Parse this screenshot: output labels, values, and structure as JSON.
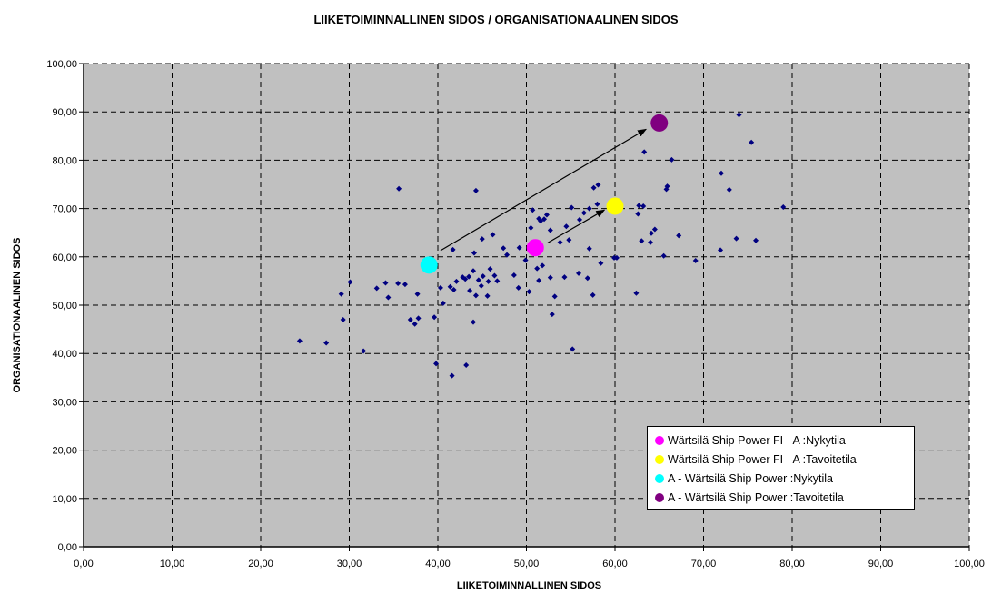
{
  "chart_data": {
    "type": "scatter",
    "title": "LIIKETOIMINNALLINEN SIDOS / ORGANISATIONAALINEN SIDOS",
    "xlabel": "LIIKETOIMINNALLINEN SIDOS",
    "ylabel": "ORGANISATIONAALINEN SIDOS",
    "xlim": [
      0,
      100
    ],
    "ylim": [
      0,
      100
    ],
    "x_ticks": [
      "0,00",
      "10,00",
      "20,00",
      "30,00",
      "40,00",
      "50,00",
      "60,00",
      "70,00",
      "80,00",
      "90,00",
      "100,00"
    ],
    "y_ticks": [
      "0,00",
      "10,00",
      "20,00",
      "30,00",
      "40,00",
      "50,00",
      "60,00",
      "70,00",
      "80,00",
      "90,00",
      "100,00"
    ],
    "grid": true,
    "plot_background": "#c0c0c0",
    "legend_position": "bottom-right",
    "base_series": {
      "color": "#000080",
      "points": [
        [
          24.4,
          42.6
        ],
        [
          27.4,
          42.2
        ],
        [
          29.1,
          52.3
        ],
        [
          29.3,
          47.0
        ],
        [
          30.1,
          54.8
        ],
        [
          31.6,
          40.5
        ],
        [
          33.1,
          53.5
        ],
        [
          34.1,
          54.6
        ],
        [
          34.4,
          51.6
        ],
        [
          35.5,
          54.5
        ],
        [
          35.6,
          74.1
        ],
        [
          36.3,
          54.3
        ],
        [
          36.9,
          47.0
        ],
        [
          37.4,
          46.1
        ],
        [
          37.7,
          52.3
        ],
        [
          37.8,
          47.3
        ],
        [
          39.6,
          47.5
        ],
        [
          39.8,
          37.9
        ],
        [
          40.3,
          53.6
        ],
        [
          40.6,
          50.4
        ],
        [
          41.4,
          53.8
        ],
        [
          41.6,
          35.4
        ],
        [
          41.7,
          61.5
        ],
        [
          41.8,
          53.2
        ],
        [
          42.1,
          54.9
        ],
        [
          42.8,
          55.8
        ],
        [
          43.1,
          55.4
        ],
        [
          43.2,
          37.6
        ],
        [
          43.5,
          55.9
        ],
        [
          43.6,
          53.0
        ],
        [
          44.0,
          57.1
        ],
        [
          44.0,
          46.5
        ],
        [
          44.1,
          60.8
        ],
        [
          44.3,
          52.0
        ],
        [
          44.3,
          73.7
        ],
        [
          44.6,
          55.2
        ],
        [
          44.9,
          54.0
        ],
        [
          45.0,
          63.7
        ],
        [
          45.1,
          56.0
        ],
        [
          45.6,
          51.9
        ],
        [
          45.7,
          54.9
        ],
        [
          45.9,
          57.5
        ],
        [
          46.2,
          64.6
        ],
        [
          46.4,
          56.1
        ],
        [
          46.7,
          55.0
        ],
        [
          47.4,
          61.8
        ],
        [
          47.8,
          60.4
        ],
        [
          48.6,
          56.2
        ],
        [
          49.1,
          53.6
        ],
        [
          49.2,
          61.9
        ],
        [
          49.9,
          59.3
        ],
        [
          50.3,
          52.8
        ],
        [
          50.5,
          66.0
        ],
        [
          50.7,
          69.7
        ],
        [
          51.2,
          57.6
        ],
        [
          51.4,
          67.9
        ],
        [
          51.4,
          55.1
        ],
        [
          51.6,
          67.4
        ],
        [
          51.8,
          58.2
        ],
        [
          52.0,
          67.8
        ],
        [
          52.3,
          68.7
        ],
        [
          52.7,
          65.5
        ],
        [
          52.7,
          55.7
        ],
        [
          52.9,
          48.1
        ],
        [
          53.2,
          51.8
        ],
        [
          53.8,
          63.0
        ],
        [
          54.3,
          55.8
        ],
        [
          54.5,
          66.3
        ],
        [
          54.8,
          63.5
        ],
        [
          55.1,
          70.2
        ],
        [
          55.2,
          40.9
        ],
        [
          55.9,
          56.6
        ],
        [
          56.0,
          67.7
        ],
        [
          56.5,
          69.1
        ],
        [
          56.9,
          55.6
        ],
        [
          57.1,
          61.7
        ],
        [
          57.1,
          70.0
        ],
        [
          57.5,
          52.1
        ],
        [
          57.6,
          74.3
        ],
        [
          58.0,
          70.9
        ],
        [
          58.1,
          74.9
        ],
        [
          58.4,
          58.7
        ],
        [
          59.9,
          59.8
        ],
        [
          60.2,
          59.8
        ],
        [
          62.4,
          52.5
        ],
        [
          62.6,
          68.9
        ],
        [
          62.7,
          70.6
        ],
        [
          63.0,
          63.3
        ],
        [
          63.2,
          70.5
        ],
        [
          63.3,
          81.7
        ],
        [
          64.0,
          63.0
        ],
        [
          64.1,
          64.9
        ],
        [
          64.5,
          65.7
        ],
        [
          65.5,
          60.2
        ],
        [
          65.8,
          74.0
        ],
        [
          65.9,
          74.6
        ],
        [
          66.4,
          80.1
        ],
        [
          67.2,
          64.4
        ],
        [
          69.1,
          59.2
        ],
        [
          71.9,
          61.4
        ],
        [
          72.0,
          77.3
        ],
        [
          72.9,
          73.9
        ],
        [
          73.7,
          63.8
        ],
        [
          74.0,
          89.4
        ],
        [
          75.4,
          83.7
        ],
        [
          75.9,
          63.4
        ],
        [
          79.0,
          70.3
        ]
      ]
    },
    "series": [
      {
        "name": "Wärtsilä Ship Power FI - A :Nykytila",
        "color": "#ff00ff",
        "x": 51.0,
        "y": 61.9
      },
      {
        "name": "Wärtsilä Ship Power FI - A :Tavoitetila",
        "color": "#ffff00",
        "x": 60.0,
        "y": 70.5
      },
      {
        "name": "A - Wärtsilä Ship Power :Nykytila",
        "color": "#00ffff",
        "x": 39.0,
        "y": 58.3
      },
      {
        "name": "A - Wärtsilä Ship Power :Tavoitetila",
        "color": "#800080",
        "x": 65.0,
        "y": 87.7
      }
    ],
    "arrows": [
      {
        "from": [
          40.3,
          61.3
        ],
        "to": [
          63.5,
          86.4
        ]
      },
      {
        "from": [
          52.4,
          62.9
        ],
        "to": [
          58.8,
          69.7
        ]
      }
    ]
  }
}
